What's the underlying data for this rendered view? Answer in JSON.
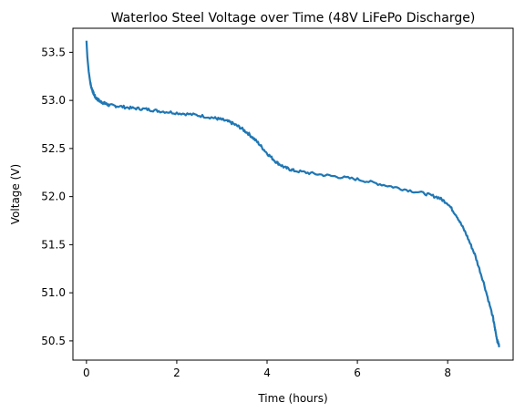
{
  "chart_data": {
    "type": "line",
    "title": "Waterloo Steel Voltage over Time (48V LiFePo Discharge)",
    "xlabel": "Time (hours)",
    "ylabel": "Voltage (V)",
    "xlim": [
      -0.3,
      9.45
    ],
    "ylim": [
      50.3,
      53.75
    ],
    "xticks": [
      0,
      2,
      4,
      6,
      8
    ],
    "xtick_labels": [
      "0",
      "2",
      "4",
      "6",
      "8"
    ],
    "yticks": [
      50.5,
      51.0,
      51.5,
      52.0,
      52.5,
      53.0,
      53.5
    ],
    "ytick_labels": [
      "50.5",
      "51.0",
      "51.5",
      "52.0",
      "52.5",
      "53.0",
      "53.5"
    ],
    "grid": false,
    "series": [
      {
        "color": "#1f77b4",
        "x": [
          0.0,
          0.02,
          0.05,
          0.08,
          0.1,
          0.15,
          0.2,
          0.3,
          0.4,
          0.5,
          0.7,
          1.0,
          1.3,
          1.6,
          2.0,
          2.4,
          2.8,
          3.0,
          3.2,
          3.4,
          3.6,
          3.8,
          4.0,
          4.2,
          4.4,
          4.6,
          5.0,
          5.5,
          6.0,
          6.5,
          7.0,
          7.5,
          7.8,
          8.0,
          8.2,
          8.4,
          8.6,
          8.8,
          9.0,
          9.05,
          9.1,
          9.14
        ],
        "y": [
          53.62,
          53.45,
          53.3,
          53.2,
          53.15,
          53.08,
          53.03,
          52.99,
          52.97,
          52.95,
          52.94,
          52.92,
          52.91,
          52.89,
          52.87,
          52.85,
          52.82,
          52.8,
          52.77,
          52.72,
          52.65,
          52.56,
          52.45,
          52.36,
          52.3,
          52.27,
          52.24,
          52.21,
          52.18,
          52.13,
          52.08,
          52.03,
          51.99,
          51.93,
          51.8,
          51.62,
          51.4,
          51.1,
          50.75,
          50.62,
          50.5,
          50.45
        ]
      }
    ]
  }
}
